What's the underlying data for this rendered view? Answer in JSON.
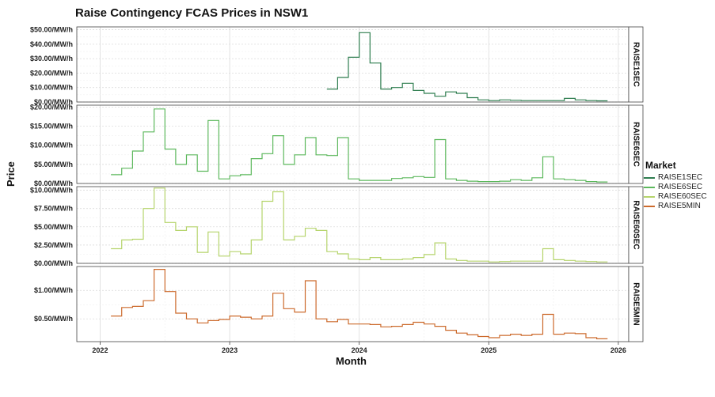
{
  "chart_data": {
    "type": "line",
    "title": "Raise Contingency FCAS Prices in NSW1",
    "xlabel": "Month",
    "ylabel": "Price",
    "x_ticks": [
      "2022",
      "2023",
      "2024",
      "2025",
      "2026"
    ],
    "legend": {
      "title": "Market",
      "position": "right",
      "items": [
        "RAISE1SEC",
        "RAISE6SEC",
        "RAISE60SEC",
        "RAISE5MIN"
      ]
    },
    "colors": {
      "RAISE1SEC": "#2e7d4f",
      "RAISE6SEC": "#5cb85c",
      "RAISE60SEC": "#b5d46b",
      "RAISE5MIN": "#cc6a2c"
    },
    "grid": true,
    "step": true,
    "panels": [
      {
        "name": "RAISE1SEC",
        "ylim": [
          0,
          52
        ],
        "y_ticks": [
          {
            "value": 0,
            "label": "$0.00/MW/h"
          },
          {
            "value": 10,
            "label": "$10.00/MW/h"
          },
          {
            "value": 20,
            "label": "$20.00/MW/h"
          },
          {
            "value": 30,
            "label": "$30.00/MW/h"
          },
          {
            "value": 40,
            "label": "$40.00/MW/h"
          },
          {
            "value": 50,
            "label": "$50.00/MW/h"
          }
        ],
        "x": [
          "2023-10",
          "2023-11",
          "2023-12",
          "2024-01",
          "2024-02",
          "2024-03",
          "2024-04",
          "2024-05",
          "2024-06",
          "2024-07",
          "2024-08",
          "2024-09",
          "2024-10",
          "2024-11",
          "2024-12",
          "2025-01",
          "2025-02",
          "2025-03",
          "2025-04",
          "2025-05",
          "2025-06",
          "2025-07",
          "2025-08",
          "2025-09",
          "2025-10",
          "2025-11"
        ],
        "values": [
          9,
          17,
          31,
          48,
          27,
          9,
          10,
          13,
          8,
          6,
          4,
          7,
          6,
          3,
          1.5,
          1,
          1.5,
          1.2,
          1,
          1,
          1,
          1,
          2.5,
          1.5,
          1,
          0.8
        ]
      },
      {
        "name": "RAISE6SEC",
        "ylim": [
          0,
          20.5
        ],
        "y_ticks": [
          {
            "value": 0,
            "label": "$0.00/MW/h"
          },
          {
            "value": 5,
            "label": "$5.00/MW/h"
          },
          {
            "value": 10,
            "label": "$10.00/MW/h"
          },
          {
            "value": 15,
            "label": "$15.00/MW/h"
          },
          {
            "value": 20,
            "label": "$20.00/MW/h"
          }
        ],
        "x": [
          "2022-02",
          "2022-03",
          "2022-04",
          "2022-05",
          "2022-06",
          "2022-07",
          "2022-08",
          "2022-09",
          "2022-10",
          "2022-11",
          "2022-12",
          "2023-01",
          "2023-02",
          "2023-03",
          "2023-04",
          "2023-05",
          "2023-06",
          "2023-07",
          "2023-08",
          "2023-09",
          "2023-10",
          "2023-11",
          "2023-12",
          "2024-01",
          "2024-02",
          "2024-03",
          "2024-04",
          "2024-05",
          "2024-06",
          "2024-07",
          "2024-08",
          "2024-09",
          "2024-10",
          "2024-11",
          "2024-12",
          "2025-01",
          "2025-02",
          "2025-03",
          "2025-04",
          "2025-05",
          "2025-06",
          "2025-07",
          "2025-08",
          "2025-09",
          "2025-10",
          "2025-11"
        ],
        "values": [
          2.3,
          4,
          8.5,
          13.5,
          19.5,
          9,
          5,
          7.5,
          3.2,
          16.5,
          1.2,
          2,
          2.3,
          6.5,
          7.8,
          12.5,
          5,
          7.5,
          12,
          7.5,
          7.3,
          12,
          1.2,
          0.8,
          0.8,
          0.8,
          1.3,
          1.5,
          1.8,
          1.6,
          11.5,
          1.2,
          0.8,
          0.6,
          0.5,
          0.5,
          0.6,
          1,
          0.8,
          1.5,
          7,
          1.2,
          1,
          0.8,
          0.5,
          0.4
        ]
      },
      {
        "name": "RAISE60SEC",
        "ylim": [
          0,
          10.5
        ],
        "y_ticks": [
          {
            "value": 0,
            "label": "$0.00/MW/h"
          },
          {
            "value": 2.5,
            "label": "$2.50/MW/h"
          },
          {
            "value": 5,
            "label": "$5.00/MW/h"
          },
          {
            "value": 7.5,
            "label": "$7.50/MW/h"
          },
          {
            "value": 10,
            "label": "$10.00/MW/h"
          }
        ],
        "x": [
          "2022-02",
          "2022-03",
          "2022-04",
          "2022-05",
          "2022-06",
          "2022-07",
          "2022-08",
          "2022-09",
          "2022-10",
          "2022-11",
          "2022-12",
          "2023-01",
          "2023-02",
          "2023-03",
          "2023-04",
          "2023-05",
          "2023-06",
          "2023-07",
          "2023-08",
          "2023-09",
          "2023-10",
          "2023-11",
          "2023-12",
          "2024-01",
          "2024-02",
          "2024-03",
          "2024-04",
          "2024-05",
          "2024-06",
          "2024-07",
          "2024-08",
          "2024-09",
          "2024-10",
          "2024-11",
          "2024-12",
          "2025-01",
          "2025-02",
          "2025-03",
          "2025-04",
          "2025-05",
          "2025-06",
          "2025-07",
          "2025-08",
          "2025-09",
          "2025-10",
          "2025-11"
        ],
        "values": [
          2,
          3.2,
          3.3,
          7.5,
          10.3,
          5.6,
          4.5,
          5,
          1.5,
          4.3,
          1,
          1.6,
          1.3,
          3.2,
          8.5,
          9.8,
          3.2,
          3.7,
          4.8,
          4.5,
          1.6,
          1.3,
          0.6,
          0.5,
          0.8,
          0.5,
          0.5,
          0.6,
          0.8,
          1.2,
          2.8,
          0.6,
          0.4,
          0.3,
          0.3,
          0.2,
          0.25,
          0.3,
          0.3,
          0.3,
          2,
          0.5,
          0.4,
          0.3,
          0.25,
          0.2
        ]
      },
      {
        "name": "RAISE5MIN",
        "ylim": [
          0.1,
          1.42
        ],
        "y_ticks": [
          {
            "value": 0.5,
            "label": "$0.50/MW/h"
          },
          {
            "value": 1,
            "label": "$1.00/MW/h"
          }
        ],
        "x": [
          "2022-02",
          "2022-03",
          "2022-04",
          "2022-05",
          "2022-06",
          "2022-07",
          "2022-08",
          "2022-09",
          "2022-10",
          "2022-11",
          "2022-12",
          "2023-01",
          "2023-02",
          "2023-03",
          "2023-04",
          "2023-05",
          "2023-06",
          "2023-07",
          "2023-08",
          "2023-09",
          "2023-10",
          "2023-11",
          "2023-12",
          "2024-01",
          "2024-02",
          "2024-03",
          "2024-04",
          "2024-05",
          "2024-06",
          "2024-07",
          "2024-08",
          "2024-09",
          "2024-10",
          "2024-11",
          "2024-12",
          "2025-01",
          "2025-02",
          "2025-03",
          "2025-04",
          "2025-05",
          "2025-06",
          "2025-07",
          "2025-08",
          "2025-09",
          "2025-10",
          "2025-11"
        ],
        "values": [
          0.55,
          0.7,
          0.72,
          0.82,
          1.37,
          0.98,
          0.6,
          0.5,
          0.43,
          0.47,
          0.49,
          0.55,
          0.53,
          0.5,
          0.55,
          0.95,
          0.68,
          0.62,
          1.17,
          0.5,
          0.45,
          0.49,
          0.41,
          0.41,
          0.4,
          0.36,
          0.37,
          0.4,
          0.44,
          0.41,
          0.37,
          0.3,
          0.25,
          0.22,
          0.19,
          0.17,
          0.21,
          0.23,
          0.21,
          0.23,
          0.58,
          0.23,
          0.25,
          0.24,
          0.17,
          0.15
        ]
      }
    ]
  }
}
